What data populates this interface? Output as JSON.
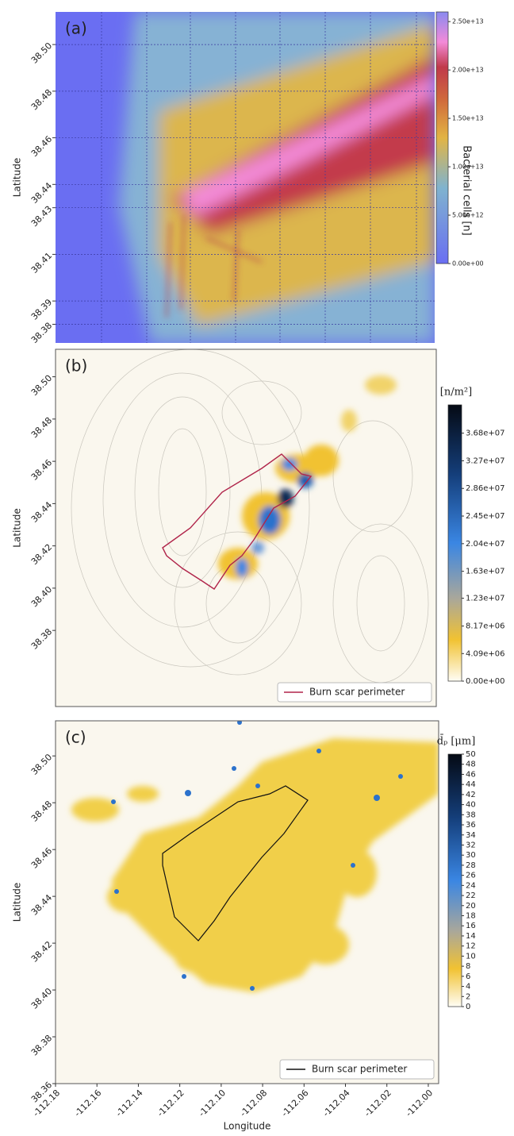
{
  "chart_data": [
    {
      "type": "heatmap",
      "panel_label": "(a)",
      "ylabel": "Latitude",
      "ylim": [
        38.372,
        38.514
      ],
      "yticks": [
        {
          "value": 38.5,
          "label": "38.50"
        },
        38.48,
        38.46,
        38.44,
        38.43,
        38.41,
        38.39,
        38.38
      ],
      "grid": true,
      "colorbar": {
        "label": "Bacterial cells [n]",
        "lim": [
          0,
          26000000000000
        ],
        "ticks": [
          {
            "value": 25000000000000,
            "label": "2.50e+13"
          },
          {
            "value": 20000000000000,
            "label": "2.00e+13"
          },
          {
            "value": 15000000000000,
            "label": "1.50e+13"
          },
          {
            "value": 10000000000000,
            "label": "1.00e+13"
          },
          {
            "value": 5000000000000,
            "label": "5.00e+12"
          },
          {
            "value": 0,
            "label": "0.00e+00"
          }
        ]
      }
    },
    {
      "type": "heatmap",
      "panel_label": "(b)",
      "ylabel": "Latitude",
      "ylim": [
        38.344,
        38.513
      ],
      "yticks": [
        {
          "value": 38.5,
          "label": "38.50"
        },
        38.48,
        38.46,
        38.44,
        38.42,
        {
          "value": 38.4,
          "label": "38.40"
        },
        38.38
      ],
      "legend": "Burn scar perimeter",
      "colorbar": {
        "label": "[n/m²]",
        "lim": [
          0,
          41000000
        ],
        "ticks": [
          {
            "value": 36800000,
            "label": "3.68e+07"
          },
          {
            "value": 32700000,
            "label": "3.27e+07"
          },
          {
            "value": 28600000,
            "label": "2.86e+07"
          },
          {
            "value": 24500000,
            "label": "2.45e+07"
          },
          {
            "value": 20400000,
            "label": "2.04e+07"
          },
          {
            "value": 16300000,
            "label": "1.63e+07"
          },
          {
            "value": 12300000,
            "label": "1.23e+07"
          },
          {
            "value": 8170000,
            "label": "8.17e+06"
          },
          {
            "value": 4090000,
            "label": "4.09e+06"
          },
          {
            "value": 0,
            "label": "0.00e+00"
          }
        ]
      }
    },
    {
      "type": "heatmap",
      "panel_label": "(c)",
      "ylabel": "Latitude",
      "xlabel": "Longitude",
      "ylim": [
        38.36,
        38.515
      ],
      "yticks": [
        {
          "value": 38.5,
          "label": "38.50"
        },
        38.48,
        38.46,
        38.44,
        38.42,
        {
          "value": 38.4,
          "label": "38.40"
        },
        38.38,
        38.36
      ],
      "xlim": [
        -112.18,
        -111.995
      ],
      "xticks": [
        -112.18,
        -112.16,
        -112.14,
        -112.12,
        {
          "value": -112.1,
          "label": "-112.10"
        },
        -112.08,
        -112.06,
        -112.04,
        -112.02,
        {
          "value": -112.0,
          "label": "-112.00"
        }
      ],
      "legend": "Burn scar perimeter",
      "colorbar": {
        "label": "d̄ₚ [μm]",
        "lim": [
          0,
          50
        ],
        "ticks": [
          50,
          48,
          46,
          44,
          42,
          40,
          38,
          36,
          34,
          32,
          30,
          28,
          26,
          24,
          22,
          20,
          18,
          16,
          14,
          12,
          10,
          8,
          6,
          4,
          2,
          0
        ]
      }
    }
  ]
}
